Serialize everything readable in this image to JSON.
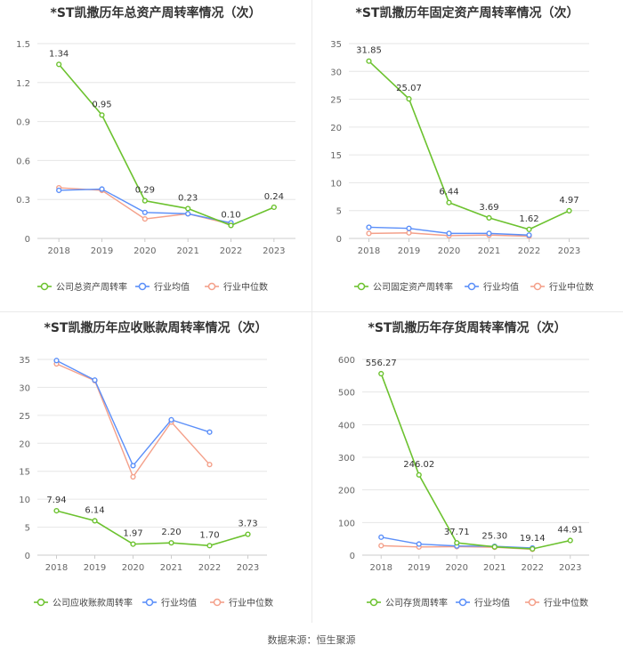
{
  "colors": {
    "company": "#6cc22f",
    "industry_avg": "#5b8ff9",
    "industry_median": "#f4a08a",
    "grid": "#e6e6e6",
    "axis_text": "#666666"
  },
  "source_label": "数据来源：恒生聚源",
  "chart_data": [
    {
      "type": "line",
      "title": "*ST凯撒历年总资产周转率情况（次）",
      "x": [
        "2018",
        "2019",
        "2020",
        "2021",
        "2022",
        "2023"
      ],
      "ylim": [
        0,
        1.5
      ],
      "yticks": [
        "0",
        "0.3",
        "0.6",
        "0.9",
        "1.2",
        "1.5"
      ],
      "series": [
        {
          "name": "公司总资产周转率",
          "values": [
            1.34,
            0.95,
            0.29,
            0.23,
            0.1,
            0.24
          ],
          "labels": [
            "1.34",
            "0.95",
            "0.29",
            "0.23",
            "0.10",
            "0.24"
          ]
        },
        {
          "name": "行业均值",
          "values": [
            0.37,
            0.38,
            0.2,
            0.19,
            0.12,
            null
          ]
        },
        {
          "name": "行业中位数",
          "values": [
            0.39,
            0.37,
            0.15,
            0.19,
            0.11,
            null
          ]
        }
      ],
      "grid": true,
      "legend": "bottom"
    },
    {
      "type": "line",
      "title": "*ST凯撒历年固定资产周转率情况（次）",
      "x": [
        "2018",
        "2019",
        "2020",
        "2021",
        "2022",
        "2023"
      ],
      "ylim": [
        0,
        35
      ],
      "yticks": [
        "0",
        "5",
        "10",
        "15",
        "20",
        "25",
        "30",
        "35"
      ],
      "series": [
        {
          "name": "公司固定资产周转率",
          "values": [
            31.85,
            25.07,
            6.44,
            3.69,
            1.62,
            4.97
          ],
          "labels": [
            "31.85",
            "25.07",
            "6.44",
            "3.69",
            "1.62",
            "4.97"
          ]
        },
        {
          "name": "行业均值",
          "values": [
            2.0,
            1.8,
            0.9,
            0.9,
            0.6,
            null
          ]
        },
        {
          "name": "行业中位数",
          "values": [
            0.9,
            1.0,
            0.5,
            0.6,
            0.4,
            null
          ]
        }
      ],
      "grid": true,
      "legend": "bottom"
    },
    {
      "type": "line",
      "title": "*ST凯撒历年应收账款周转率情况（次）",
      "x": [
        "2018",
        "2019",
        "2020",
        "2021",
        "2022",
        "2023"
      ],
      "ylim": [
        0,
        35
      ],
      "yticks": [
        "0",
        "5",
        "10",
        "15",
        "20",
        "25",
        "30",
        "35"
      ],
      "series": [
        {
          "name": "公司应收账款周转率",
          "values": [
            7.94,
            6.14,
            1.97,
            2.2,
            1.7,
            3.73
          ],
          "labels": [
            "7.94",
            "6.14",
            "1.97",
            "2.20",
            "1.70",
            "3.73"
          ]
        },
        {
          "name": "行业均值",
          "values": [
            34.8,
            31.3,
            16.0,
            24.2,
            22.0,
            null
          ]
        },
        {
          "name": "行业中位数",
          "values": [
            34.2,
            31.2,
            14.0,
            23.8,
            16.2,
            null
          ]
        }
      ],
      "grid": true,
      "legend": "bottom"
    },
    {
      "type": "line",
      "title": "*ST凯撒历年存货周转率情况（次）",
      "x": [
        "2018",
        "2019",
        "2020",
        "2021",
        "2022",
        "2023"
      ],
      "ylim": [
        0,
        600
      ],
      "yticks": [
        "0",
        "100",
        "200",
        "300",
        "400",
        "500",
        "600"
      ],
      "series": [
        {
          "name": "公司存货周转率",
          "values": [
            556.27,
            246.02,
            37.71,
            25.3,
            19.14,
            44.91
          ],
          "labels": [
            "556.27",
            "246.02",
            "37.71",
            "25.30",
            "19.14",
            "44.91"
          ]
        },
        {
          "name": "行业均值",
          "values": [
            55,
            34,
            28,
            27,
            22,
            null
          ]
        },
        {
          "name": "行业中位数",
          "values": [
            29,
            25,
            26,
            24,
            18,
            null
          ]
        }
      ],
      "grid": true,
      "legend": "bottom"
    }
  ]
}
